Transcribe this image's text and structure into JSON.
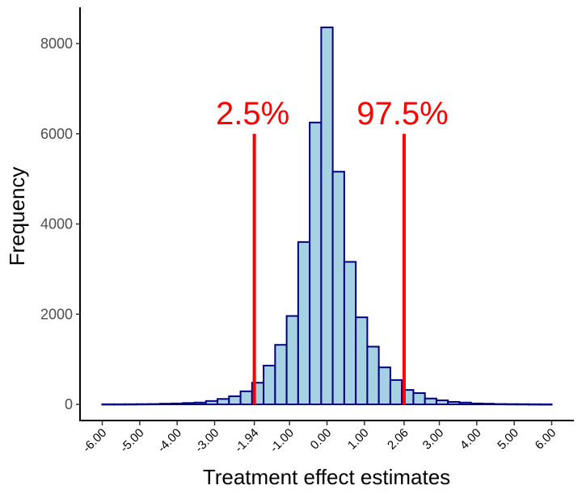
{
  "chart_data": {
    "type": "bar",
    "subtype": "histogram",
    "title": "",
    "xlabel": "Treatment effect estimates",
    "ylabel": "Frequency",
    "xlim": [
      -6,
      6
    ],
    "ylim": [
      0,
      8700
    ],
    "bin_start": -6,
    "bin_end": 6,
    "bin_count": 39,
    "counts": [
      3,
      3,
      4,
      6,
      8,
      15,
      20,
      30,
      40,
      75,
      120,
      180,
      290,
      480,
      860,
      1320,
      1960,
      3600,
      6250,
      8360,
      5160,
      3160,
      1930,
      1280,
      820,
      540,
      320,
      250,
      130,
      90,
      55,
      40,
      20,
      15,
      8,
      6,
      5,
      3,
      2
    ],
    "yticks": [
      0,
      2000,
      4000,
      6000,
      8000
    ],
    "xticks": [
      {
        "value": -6,
        "label": "-6.00",
        "highlight": false
      },
      {
        "value": -5,
        "label": "-5.00",
        "highlight": false
      },
      {
        "value": -4,
        "label": "-4.00",
        "highlight": false
      },
      {
        "value": -3,
        "label": "-3.00",
        "highlight": false
      },
      {
        "value": -1.94,
        "label": "-1.94",
        "highlight": true
      },
      {
        "value": -1,
        "label": "-1.00",
        "highlight": false
      },
      {
        "value": 0,
        "label": "0.00",
        "highlight": false
      },
      {
        "value": 1,
        "label": "1.00",
        "highlight": false
      },
      {
        "value": 2.06,
        "label": "2.06",
        "highlight": true
      },
      {
        "value": 3,
        "label": "3.00",
        "highlight": false
      },
      {
        "value": 4,
        "label": "4.00",
        "highlight": false
      },
      {
        "value": 5,
        "label": "5.00",
        "highlight": false
      },
      {
        "value": 6,
        "label": "6.00",
        "highlight": false
      }
    ],
    "annotations": [
      {
        "x": -1.94,
        "y_top": 6000,
        "label": "2.5%",
        "label_y": 6500
      },
      {
        "x": 2.06,
        "y_top": 6000,
        "label": "97.5%",
        "label_y": 6500
      }
    ],
    "grid": false,
    "legend": "none"
  },
  "colors": {
    "bar_fill": "#a6d1e3",
    "bar_stroke": "#00007f",
    "annotation": "#ff0000",
    "axis": "#000000"
  }
}
